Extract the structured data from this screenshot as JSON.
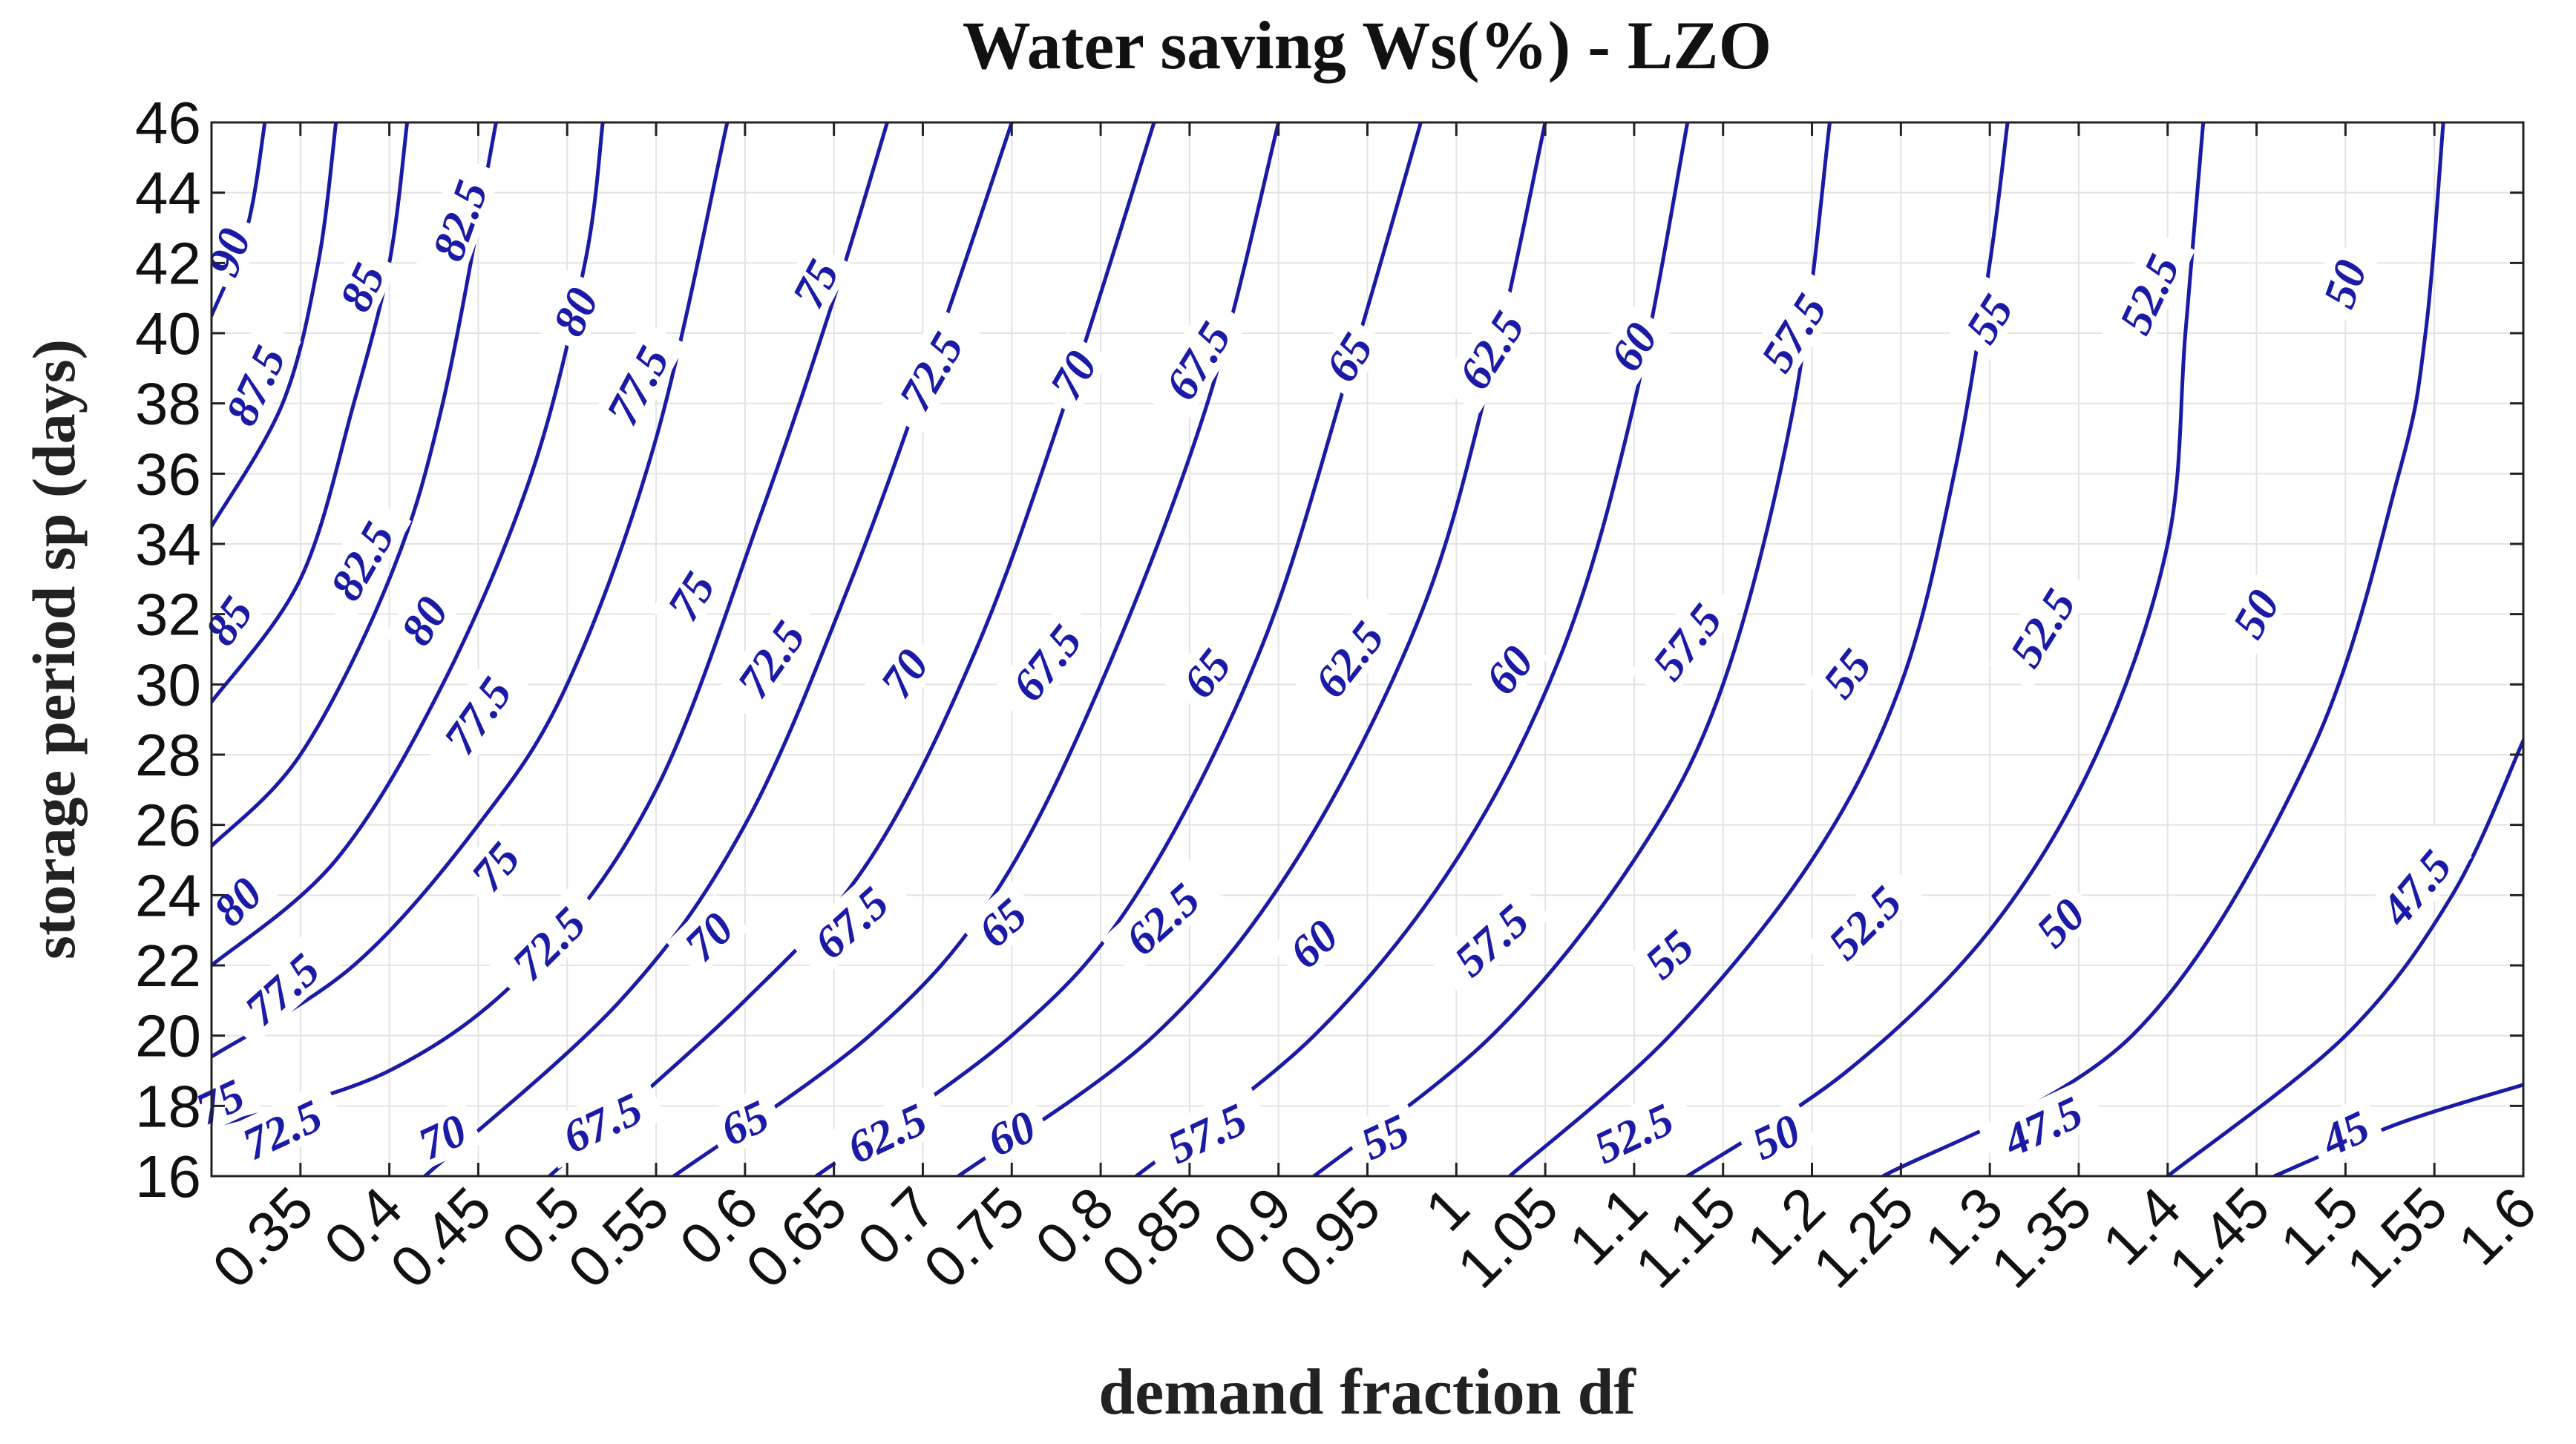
{
  "chart_data": {
    "type": "contour",
    "title": "Water saving  Ws(%) - LZO",
    "xlabel": "demand fraction df",
    "ylabel": "storage period sp (days)",
    "xlim": [
      0.3,
      1.6
    ],
    "ylim": [
      16,
      46
    ],
    "grid": true,
    "line_color": "#1a1aa6",
    "x_ticks": [
      "0.35",
      "0.4",
      "0.45",
      "0.5",
      "0.55",
      "0.6",
      "0.65",
      "0.7",
      "0.75",
      "0.8",
      "0.85",
      "0.9",
      "0.95",
      "1",
      "1.05",
      "1.1",
      "1.15",
      "1.2",
      "1.25",
      "1.3",
      "1.35",
      "1.4",
      "1.45",
      "1.5",
      "1.55",
      "1.6"
    ],
    "y_ticks": [
      "16",
      "18",
      "20",
      "22",
      "24",
      "26",
      "28",
      "30",
      "32",
      "34",
      "36",
      "38",
      "40",
      "42",
      "44",
      "46"
    ],
    "levels": [
      "45",
      "47.5",
      "50",
      "52.5",
      "55",
      "57.5",
      "60",
      "62.5",
      "65",
      "67.5",
      "70",
      "72.5",
      "75",
      "77.5",
      "80",
      "82.5",
      "85",
      "87.5",
      "90"
    ],
    "contours": [
      {
        "level": "45",
        "points": [
          [
            1.46,
            16
          ],
          [
            1.53,
            17.5
          ],
          [
            1.6,
            18.6
          ]
        ]
      },
      {
        "level": "47.5",
        "points": [
          [
            1.4,
            16
          ],
          [
            1.5,
            20
          ],
          [
            1.56,
            24
          ],
          [
            1.6,
            28.4
          ]
        ]
      },
      {
        "level": "50",
        "points": [
          [
            1.24,
            16
          ],
          [
            1.38,
            20
          ],
          [
            1.48,
            28
          ],
          [
            1.53,
            36
          ],
          [
            1.545,
            40
          ],
          [
            1.555,
            46
          ]
        ]
      },
      {
        "level": "52.5",
        "points": [
          [
            1.13,
            16
          ],
          [
            1.22,
            19
          ],
          [
            1.3,
            23
          ],
          [
            1.36,
            28
          ],
          [
            1.4,
            34
          ],
          [
            1.41,
            40
          ],
          [
            1.42,
            46
          ]
        ]
      },
      {
        "level": "55",
        "points": [
          [
            1.03,
            16
          ],
          [
            1.12,
            20
          ],
          [
            1.2,
            25
          ],
          [
            1.25,
            30
          ],
          [
            1.28,
            36
          ],
          [
            1.3,
            42
          ],
          [
            1.31,
            46
          ]
        ]
      },
      {
        "level": "57.5",
        "points": [
          [
            0.92,
            16
          ],
          [
            1.02,
            20
          ],
          [
            1.1,
            25
          ],
          [
            1.15,
            30
          ],
          [
            1.19,
            38
          ],
          [
            1.21,
            46
          ]
        ]
      },
      {
        "level": "60",
        "points": [
          [
            0.82,
            16
          ],
          [
            0.92,
            20
          ],
          [
            1.0,
            25
          ],
          [
            1.06,
            31
          ],
          [
            1.1,
            38
          ],
          [
            1.13,
            46
          ]
        ]
      },
      {
        "level": "62.5",
        "points": [
          [
            0.72,
            16
          ],
          [
            0.83,
            20
          ],
          [
            0.91,
            25
          ],
          [
            0.98,
            32
          ],
          [
            1.02,
            39
          ],
          [
            1.05,
            46
          ]
        ]
      },
      {
        "level": "65",
        "points": [
          [
            0.64,
            16
          ],
          [
            0.75,
            20
          ],
          [
            0.82,
            24
          ],
          [
            0.89,
            31
          ],
          [
            0.94,
            39
          ],
          [
            0.98,
            46
          ]
        ]
      },
      {
        "level": "67.5",
        "points": [
          [
            0.56,
            16
          ],
          [
            0.67,
            20
          ],
          [
            0.74,
            24
          ],
          [
            0.8,
            30
          ],
          [
            0.86,
            38
          ],
          [
            0.9,
            46
          ]
        ]
      },
      {
        "level": "70",
        "points": [
          [
            0.49,
            16
          ],
          [
            0.6,
            21
          ],
          [
            0.67,
            25
          ],
          [
            0.73,
            31
          ],
          [
            0.78,
            38
          ],
          [
            0.83,
            46
          ]
        ]
      },
      {
        "level": "72.5",
        "points": [
          [
            0.42,
            16
          ],
          [
            0.53,
            21
          ],
          [
            0.6,
            26
          ],
          [
            0.66,
            33
          ],
          [
            0.71,
            40
          ],
          [
            0.75,
            46
          ]
        ]
      },
      {
        "level": "75",
        "points": [
          [
            0.3,
            17.4
          ],
          [
            0.4,
            19
          ],
          [
            0.48,
            22
          ],
          [
            0.55,
            27
          ],
          [
            0.61,
            35
          ],
          [
            0.65,
            41
          ],
          [
            0.68,
            46
          ]
        ]
      },
      {
        "level": "77.5",
        "points": [
          [
            0.3,
            19.4
          ],
          [
            0.38,
            22
          ],
          [
            0.45,
            26
          ],
          [
            0.5,
            30
          ],
          [
            0.55,
            37
          ],
          [
            0.59,
            46
          ]
        ]
      },
      {
        "level": "80",
        "points": [
          [
            0.3,
            22
          ],
          [
            0.37,
            25
          ],
          [
            0.43,
            30
          ],
          [
            0.48,
            36
          ],
          [
            0.51,
            42
          ],
          [
            0.52,
            46
          ]
        ]
      },
      {
        "level": "82.5",
        "points": [
          [
            0.3,
            25.4
          ],
          [
            0.35,
            28
          ],
          [
            0.4,
            33
          ],
          [
            0.43,
            38
          ],
          [
            0.46,
            46
          ]
        ]
      },
      {
        "level": "85",
        "points": [
          [
            0.3,
            29.5
          ],
          [
            0.35,
            33
          ],
          [
            0.38,
            38
          ],
          [
            0.4,
            42
          ],
          [
            0.41,
            46
          ]
        ]
      },
      {
        "level": "87.5",
        "points": [
          [
            0.3,
            34.5
          ],
          [
            0.34,
            38
          ],
          [
            0.36,
            42
          ],
          [
            0.37,
            46
          ]
        ]
      },
      {
        "level": "90",
        "points": [
          [
            0.3,
            40.5
          ],
          [
            0.32,
            43
          ],
          [
            0.33,
            46
          ]
        ]
      }
    ],
    "labels": [
      {
        "text": "90",
        "x": 0.31,
        "y": 42.3,
        "angle": -70
      },
      {
        "text": "87.5",
        "x": 0.325,
        "y": 38.5,
        "angle": -65
      },
      {
        "text": "85",
        "x": 0.31,
        "y": 31.8,
        "angle": -55
      },
      {
        "text": "85",
        "x": 0.385,
        "y": 41.3,
        "angle": -65
      },
      {
        "text": "82.5",
        "x": 0.385,
        "y": 33.5,
        "angle": -60
      },
      {
        "text": "82.5",
        "x": 0.44,
        "y": 43.2,
        "angle": -70
      },
      {
        "text": "80",
        "x": 0.315,
        "y": 23.8,
        "angle": -45
      },
      {
        "text": "80",
        "x": 0.42,
        "y": 31.8,
        "angle": -58
      },
      {
        "text": "80",
        "x": 0.505,
        "y": 40.6,
        "angle": -65
      },
      {
        "text": "77.5",
        "x": 0.34,
        "y": 21.3,
        "angle": -42
      },
      {
        "text": "77.5",
        "x": 0.45,
        "y": 29.1,
        "angle": -55
      },
      {
        "text": "77.5",
        "x": 0.54,
        "y": 38.5,
        "angle": -62
      },
      {
        "text": "75",
        "x": 0.305,
        "y": 18.1,
        "angle": -25
      },
      {
        "text": "75",
        "x": 0.46,
        "y": 24.8,
        "angle": -50
      },
      {
        "text": "75",
        "x": 0.57,
        "y": 32.5,
        "angle": -58
      },
      {
        "text": "75",
        "x": 0.64,
        "y": 41.4,
        "angle": -62
      },
      {
        "text": "72.5",
        "x": 0.34,
        "y": 17.3,
        "angle": -25
      },
      {
        "text": "72.5",
        "x": 0.49,
        "y": 22.6,
        "angle": -45
      },
      {
        "text": "72.5",
        "x": 0.615,
        "y": 30.7,
        "angle": -55
      },
      {
        "text": "72.5",
        "x": 0.705,
        "y": 38.9,
        "angle": -60
      },
      {
        "text": "70",
        "x": 0.43,
        "y": 17.1,
        "angle": -25
      },
      {
        "text": "70",
        "x": 0.58,
        "y": 22.8,
        "angle": -45
      },
      {
        "text": "70",
        "x": 0.69,
        "y": 30.3,
        "angle": -55
      },
      {
        "text": "70",
        "x": 0.785,
        "y": 38.8,
        "angle": -60
      },
      {
        "text": "67.5",
        "x": 0.52,
        "y": 17.5,
        "angle": -25
      },
      {
        "text": "67.5",
        "x": 0.66,
        "y": 23.2,
        "angle": -42
      },
      {
        "text": "67.5",
        "x": 0.77,
        "y": 30.6,
        "angle": -52
      },
      {
        "text": "67.5",
        "x": 0.855,
        "y": 39.2,
        "angle": -58
      },
      {
        "text": "65",
        "x": 0.6,
        "y": 17.5,
        "angle": -25
      },
      {
        "text": "65",
        "x": 0.745,
        "y": 23.2,
        "angle": -42
      },
      {
        "text": "65",
        "x": 0.86,
        "y": 30.3,
        "angle": -52
      },
      {
        "text": "65",
        "x": 0.94,
        "y": 39.3,
        "angle": -58
      },
      {
        "text": "62.5",
        "x": 0.68,
        "y": 17.2,
        "angle": -25
      },
      {
        "text": "62.5",
        "x": 0.835,
        "y": 23.3,
        "angle": -42
      },
      {
        "text": "62.5",
        "x": 0.94,
        "y": 30.7,
        "angle": -52
      },
      {
        "text": "62.5",
        "x": 1.02,
        "y": 39.5,
        "angle": -58
      },
      {
        "text": "60",
        "x": 0.75,
        "y": 17.2,
        "angle": -25
      },
      {
        "text": "60",
        "x": 0.92,
        "y": 22.6,
        "angle": -42
      },
      {
        "text": "60",
        "x": 1.03,
        "y": 30.4,
        "angle": -52
      },
      {
        "text": "60",
        "x": 1.1,
        "y": 39.6,
        "angle": -58
      },
      {
        "text": "57.5",
        "x": 0.86,
        "y": 17.2,
        "angle": -25
      },
      {
        "text": "57.5",
        "x": 1.02,
        "y": 22.7,
        "angle": -42
      },
      {
        "text": "57.5",
        "x": 1.13,
        "y": 31.2,
        "angle": -52
      },
      {
        "text": "57.5",
        "x": 1.19,
        "y": 40.0,
        "angle": -58
      },
      {
        "text": "55",
        "x": 0.96,
        "y": 17.1,
        "angle": -25
      },
      {
        "text": "55",
        "x": 1.12,
        "y": 22.3,
        "angle": -42
      },
      {
        "text": "55",
        "x": 1.22,
        "y": 30.3,
        "angle": -52
      },
      {
        "text": "55",
        "x": 1.3,
        "y": 40.4,
        "angle": -58
      },
      {
        "text": "52.5",
        "x": 1.1,
        "y": 17.2,
        "angle": -25
      },
      {
        "text": "52.5",
        "x": 1.23,
        "y": 23.2,
        "angle": -45
      },
      {
        "text": "52.5",
        "x": 1.33,
        "y": 31.6,
        "angle": -58
      },
      {
        "text": "52.5",
        "x": 1.39,
        "y": 41.1,
        "angle": -65
      },
      {
        "text": "50",
        "x": 1.18,
        "y": 17.1,
        "angle": -25
      },
      {
        "text": "50",
        "x": 1.34,
        "y": 23.2,
        "angle": -45
      },
      {
        "text": "50",
        "x": 1.45,
        "y": 32.0,
        "angle": -60
      },
      {
        "text": "50",
        "x": 1.5,
        "y": 41.4,
        "angle": -70
      },
      {
        "text": "47.5",
        "x": 1.33,
        "y": 17.4,
        "angle": -25
      },
      {
        "text": "47.5",
        "x": 1.54,
        "y": 24.2,
        "angle": -50
      },
      {
        "text": "45",
        "x": 1.5,
        "y": 17.2,
        "angle": -25
      }
    ]
  }
}
